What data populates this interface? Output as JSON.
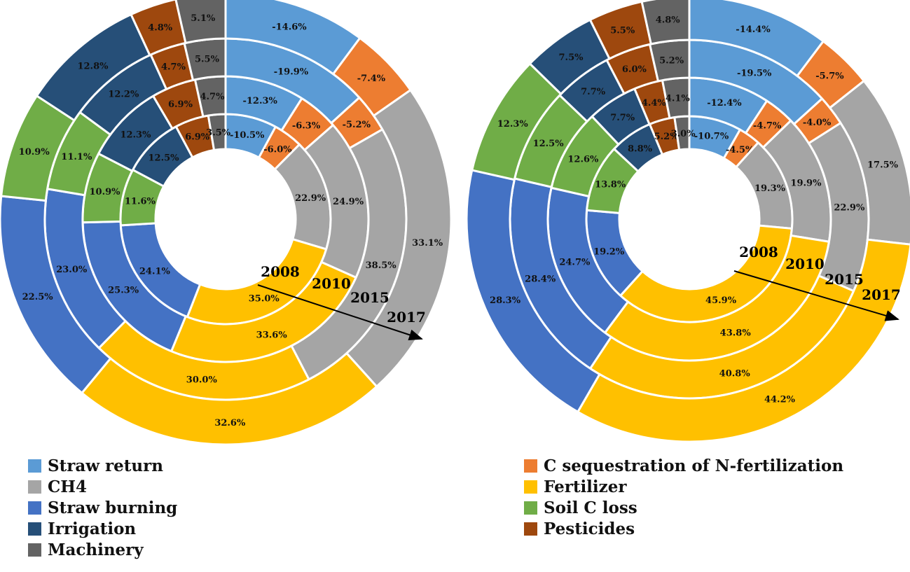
{
  "chart_data": [
    {
      "type": "donut",
      "title": "",
      "years": [
        "2008",
        "2010",
        "2015",
        "2017"
      ],
      "rings": [
        {
          "year": "2008",
          "values": [
            -10.5,
            -6.0,
            22.9,
            35.0,
            24.1,
            11.6,
            12.5,
            6.9,
            3.5
          ],
          "labels": [
            "-10.5%",
            "-6.0%",
            "22.9%",
            "35.0%",
            "24.1%",
            "11.6%",
            "12.5%",
            "6.9%",
            "3.5%"
          ]
        },
        {
          "year": "2010",
          "values": [
            -12.3,
            -6.3,
            24.9,
            33.6,
            25.3,
            10.9,
            12.3,
            6.9,
            4.7
          ],
          "labels": [
            "-12.3%",
            "-6.3%",
            "24.9%",
            "33.6%",
            "25.3%",
            "10.9%",
            "12.3%",
            "6.9%",
            "4.7%"
          ]
        },
        {
          "year": "2015",
          "values": [
            -19.9,
            -5.2,
            38.5,
            30.0,
            23.0,
            11.1,
            12.2,
            4.7,
            5.5
          ],
          "labels": [
            "-19.9%",
            "-5.2%",
            "38.5%",
            "30.0%",
            "23.0%",
            "11.1%",
            "12.2%",
            "4.7%",
            "5.5%"
          ]
        },
        {
          "year": "2017",
          "values": [
            -14.6,
            -7.4,
            33.1,
            32.6,
            22.5,
            10.9,
            12.8,
            4.8,
            5.1
          ],
          "labels": [
            "-14.6%",
            "-7.4%",
            "33.1%",
            "32.6%",
            "22.5%",
            "10.9%",
            "12.8%",
            "4.8%",
            "5.1%"
          ]
        }
      ]
    },
    {
      "type": "donut",
      "title": "",
      "years": [
        "2008",
        "2010",
        "2015",
        "2017"
      ],
      "rings": [
        {
          "year": "2008",
          "values": [
            -10.7,
            -4.5,
            19.3,
            45.9,
            19.2,
            13.8,
            8.8,
            5.2,
            3.0
          ],
          "labels": [
            "-10.7%",
            "-4.5%",
            "19.3%",
            "45.9%",
            "19.2%",
            "13.8%",
            "8.8%",
            "5.2%",
            "3.0%"
          ]
        },
        {
          "year": "2010",
          "values": [
            -12.4,
            -4.7,
            19.9,
            43.8,
            24.7,
            12.6,
            7.7,
            4.4,
            4.1
          ],
          "labels": [
            "-12.4%",
            "-4.7%",
            "19.9%",
            "43.8%",
            "24.7%",
            "12.6%",
            "7.7%",
            "4.4%",
            "4.1%"
          ]
        },
        {
          "year": "2015",
          "values": [
            -19.5,
            -4.0,
            22.9,
            40.8,
            28.4,
            12.5,
            7.7,
            6.0,
            5.2
          ],
          "labels": [
            "-19.5%",
            "-4.0%",
            "22.9%",
            "40.8%",
            "28.4%",
            "12.5%",
            "7.7%",
            "6.0%",
            "5.2%"
          ]
        },
        {
          "year": "2017",
          "values": [
            -14.4,
            -5.7,
            17.5,
            44.2,
            28.3,
            12.3,
            7.5,
            5.5,
            4.8
          ],
          "labels": [
            "-14.4%",
            "-5.7%",
            "17.5%",
            "44.2%",
            "28.3%",
            "12.3%",
            "7.5%",
            "5.5%",
            "4.8%"
          ]
        }
      ]
    }
  ],
  "categories": [
    "Straw return",
    "C sequestration of N-fertilization",
    "CH4",
    "Fertilizer",
    "Straw burning",
    "Soil C loss",
    "Irrigation",
    "Pesticides",
    "Machinery"
  ],
  "colors": [
    "#5B9BD5",
    "#ED7D31",
    "#A5A5A5",
    "#FFC000",
    "#4472C4",
    "#70AD47",
    "#264F78",
    "#9E480E",
    "#636363"
  ],
  "legend": {
    "left": [
      {
        "label": "Straw return",
        "color": "#5B9BD5"
      },
      {
        "label": "CH4",
        "color": "#A5A5A5"
      },
      {
        "label": "Straw burning",
        "color": "#4472C4"
      },
      {
        "label": "Irrigation",
        "color": "#264F78"
      },
      {
        "label": "Machinery",
        "color": "#636363"
      }
    ],
    "right": [
      {
        "label": "C sequestration of N-fertilization",
        "color": "#ED7D31"
      },
      {
        "label": "Fertilizer",
        "color": "#FFC000"
      },
      {
        "label": "Soil C loss",
        "color": "#70AD47"
      },
      {
        "label": "Pesticides",
        "color": "#9E480E"
      }
    ]
  }
}
